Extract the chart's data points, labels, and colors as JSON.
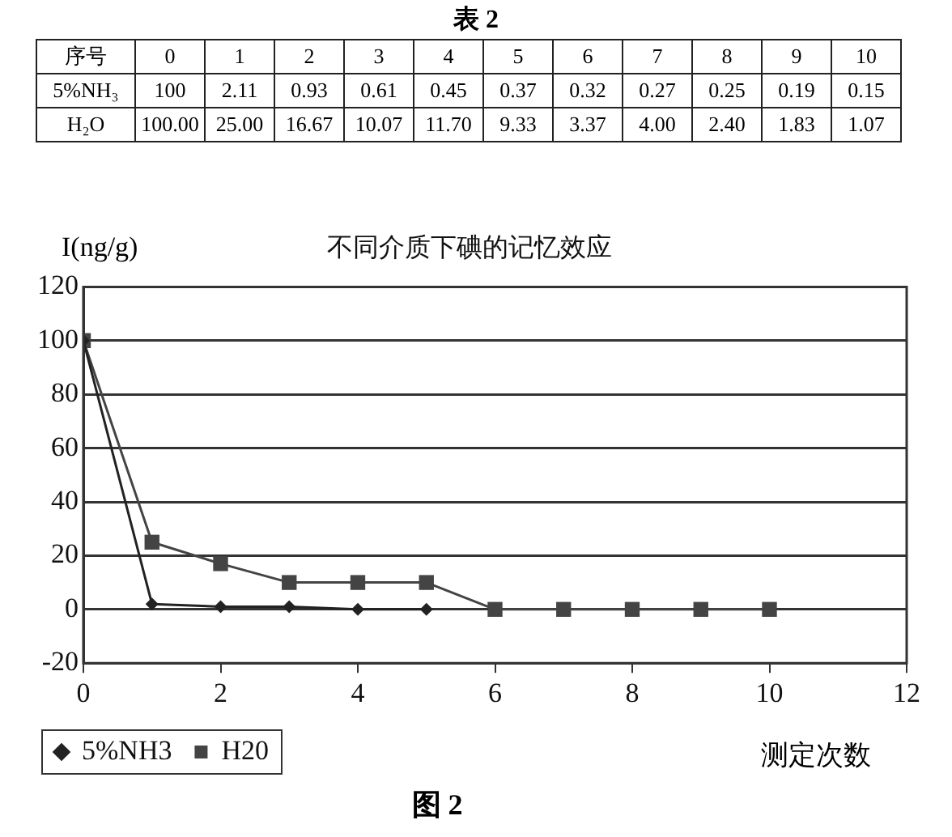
{
  "chart_data": [
    {
      "type": "heatmap",
      "title": "表 2",
      "ylabel": "序号",
      "categories": [
        "0",
        "1",
        "2",
        "3",
        "4",
        "5",
        "6",
        "7",
        "8",
        "9",
        "10"
      ],
      "y_categories": [
        "5%NH₃",
        "H₂O"
      ],
      "cells": [
        [
          100,
          2.11,
          0.93,
          0.61,
          0.45,
          0.37,
          0.32,
          0.27,
          0.25,
          0.19,
          0.15
        ],
        [
          100,
          25,
          16.67,
          10.07,
          11.7,
          9.33,
          3.37,
          4,
          2.4,
          1.83,
          1.07
        ]
      ],
      "cell_labels": [
        [
          "100",
          "2.11",
          "0.93",
          "0.61",
          "0.45",
          "0.37",
          "0.32",
          "0.27",
          "0.25",
          "0.19",
          "0.15"
        ],
        [
          "100.00",
          "25.00",
          "16.67",
          "10.07",
          "11.70",
          "9.33",
          "3.37",
          "4.00",
          "2.40",
          "1.83",
          "1.07"
        ]
      ]
    },
    {
      "type": "line",
      "title": "不同介质下碘的记忆效应",
      "xlabel": "测定次数",
      "ylabel": "I(ng/g)",
      "series": [
        {
          "name": "5%NH3",
          "color": "#222222",
          "marker": "diamond",
          "x": [
            0,
            1,
            2,
            3,
            4,
            5
          ],
          "values": [
            100,
            2,
            1,
            1,
            0,
            0
          ]
        },
        {
          "name": "H20",
          "color": "#444444",
          "marker": "square",
          "x": [
            0,
            1,
            2,
            3,
            4,
            5,
            6,
            7,
            8,
            9,
            10
          ],
          "values": [
            100,
            25,
            17,
            10,
            10,
            10,
            0,
            0,
            0,
            0,
            0
          ]
        }
      ],
      "xlim": [
        0,
        12
      ],
      "xticks": [
        0,
        2,
        4,
        6,
        8,
        10,
        12
      ],
      "ylim": [
        -20,
        120
      ],
      "yticks": [
        -20,
        0,
        20,
        40,
        60,
        80,
        100,
        120
      ],
      "grid": "y",
      "legend": "bottom",
      "line_style": "solid",
      "annotations": [
        "图 2"
      ]
    }
  ]
}
